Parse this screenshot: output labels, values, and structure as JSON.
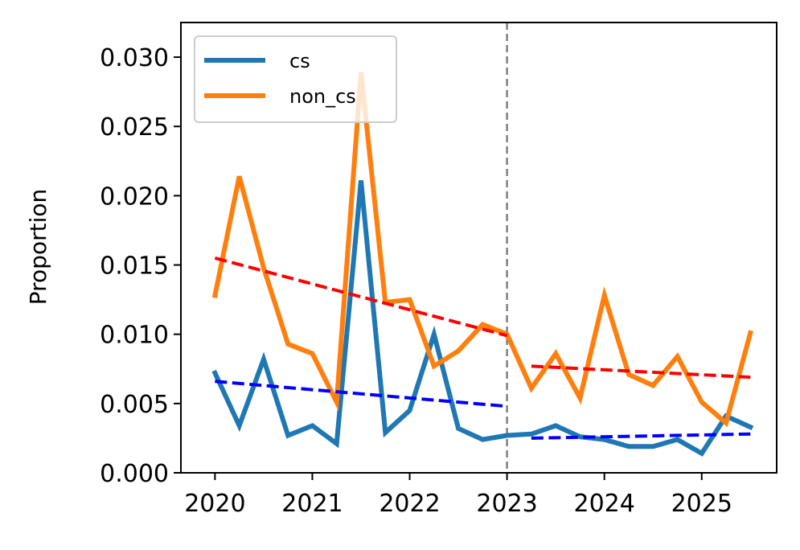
{
  "chart_data": {
    "type": "line",
    "title": "",
    "xlabel": "",
    "ylabel": "Proportion",
    "xlim": [
      2019.65,
      2025.77
    ],
    "ylim": [
      0.0,
      0.0325
    ],
    "xticks": [
      2020,
      2021,
      2022,
      2023,
      2024,
      2025
    ],
    "xtick_labels": [
      "2020",
      "2021",
      "2022",
      "2023",
      "2024",
      "2025"
    ],
    "yticks": [
      0.0,
      0.005,
      0.01,
      0.015,
      0.02,
      0.025,
      0.03
    ],
    "ytick_labels": [
      "0.000",
      "0.005",
      "0.010",
      "0.015",
      "0.020",
      "0.025",
      "0.030"
    ],
    "grid": false,
    "legend_position": "top-left",
    "series": [
      {
        "name": "cs",
        "color": "#1f77b4",
        "x": [
          2020.0,
          2020.25,
          2020.5,
          2020.75,
          2021.0,
          2021.25,
          2021.5,
          2021.75,
          2022.0,
          2022.25,
          2022.5,
          2022.75,
          2023.0,
          2023.25,
          2023.5,
          2023.75,
          2024.0,
          2024.25,
          2024.5,
          2024.75,
          2025.0,
          2025.25,
          2025.5
        ],
        "y": [
          0.0072,
          0.0034,
          0.0082,
          0.0027,
          0.0034,
          0.0021,
          0.0211,
          0.0029,
          0.0045,
          0.01,
          0.0032,
          0.0024,
          0.0027,
          0.0028,
          0.0034,
          0.0026,
          0.0024,
          0.0019,
          0.0019,
          0.0024,
          0.0014,
          0.0041,
          0.0033
        ]
      },
      {
        "name": "non_cs",
        "color": "#ff7f0e",
        "x": [
          2020.0,
          2020.25,
          2020.5,
          2020.75,
          2021.0,
          2021.25,
          2021.5,
          2021.75,
          2022.0,
          2022.25,
          2022.5,
          2022.75,
          2023.0,
          2023.25,
          2023.5,
          2023.75,
          2024.0,
          2024.25,
          2024.5,
          2024.75,
          2025.0,
          2025.25,
          2025.5
        ],
        "y": [
          0.0128,
          0.0214,
          0.0148,
          0.0093,
          0.0086,
          0.0051,
          0.0289,
          0.0123,
          0.0125,
          0.0077,
          0.0088,
          0.0107,
          0.01,
          0.0061,
          0.0086,
          0.0054,
          0.0128,
          0.0071,
          0.0063,
          0.0084,
          0.0051,
          0.0036,
          0.0101
        ]
      }
    ],
    "trend_lines": [
      {
        "color": "#ff0000",
        "x": [
          2020.0,
          2023.0
        ],
        "y": [
          0.0155,
          0.0099
        ]
      },
      {
        "color": "#ff0000",
        "x": [
          2023.25,
          2025.5
        ],
        "y": [
          0.0077,
          0.0069
        ]
      },
      {
        "color": "#0000ff",
        "x": [
          2020.0,
          2023.0
        ],
        "y": [
          0.0066,
          0.0048
        ]
      },
      {
        "color": "#0000ff",
        "x": [
          2023.25,
          2025.5
        ],
        "y": [
          0.0025,
          0.0028
        ]
      }
    ],
    "vertical_line": {
      "x": 2023.0,
      "color": "#808080"
    }
  }
}
